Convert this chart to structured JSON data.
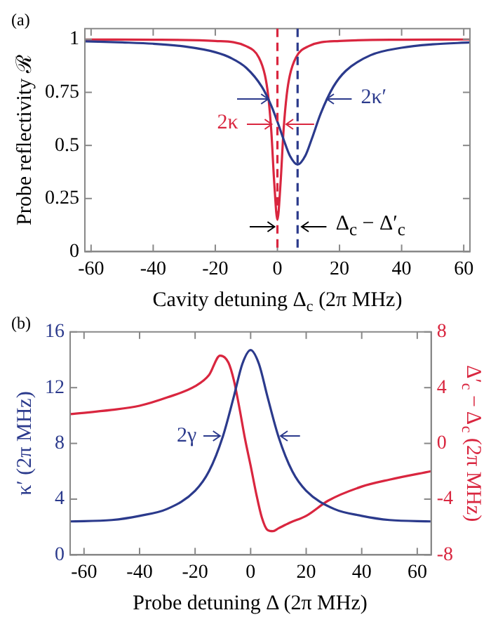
{
  "chart_data": [
    {
      "type": "line",
      "xlabel": "Cavity detuning Δ$_{c}$ (2π MHz)",
      "ylabel": "Probe reflectivity ℛ",
      "series": [
        {
          "color": "#2b3a8c",
          "x": [
            -62,
            -50,
            -40,
            -30,
            -20,
            -15,
            -10,
            -5,
            -2,
            0,
            2,
            4,
            6.5,
            9,
            11,
            14,
            18,
            22,
            30,
            40,
            50,
            62
          ],
          "values": [
            0.99,
            0.985,
            0.979,
            0.966,
            0.939,
            0.912,
            0.865,
            0.776,
            0.688,
            0.612,
            0.528,
            0.452,
            0.41,
            0.452,
            0.528,
            0.652,
            0.776,
            0.851,
            0.925,
            0.96,
            0.976,
            0.985
          ]
        },
        {
          "color": "#d9263f",
          "x": [
            -62,
            -40,
            -20,
            -10,
            -6,
            -4,
            -3,
            -2,
            -1,
            0,
            1,
            2,
            3,
            4,
            6,
            10,
            20,
            40,
            62
          ],
          "values": [
            0.999,
            0.998,
            0.992,
            0.967,
            0.915,
            0.83,
            0.738,
            0.575,
            0.32,
            0.15,
            0.32,
            0.575,
            0.738,
            0.83,
            0.915,
            0.967,
            0.992,
            0.998,
            0.999
          ]
        }
      ],
      "xlim": [
        -62,
        62
      ],
      "xticks": [
        -60,
        -40,
        -20,
        0,
        20,
        40,
        60
      ],
      "ylim": [
        0,
        1.05
      ],
      "yticks": [
        0,
        0.25,
        0.5,
        0.75,
        1
      ],
      "ref_lines": [
        {
          "axis": "x",
          "value": 0,
          "color": "#d9263f",
          "line_style": "dashed"
        },
        {
          "axis": "x",
          "value": 6.5,
          "color": "#2b3a8c",
          "line_style": "dashed"
        }
      ],
      "annotations": [
        "(a)",
        "2κ′",
        "2κ",
        "Δ$_{c}$ − Δ′$_{c}$"
      ]
    },
    {
      "type": "line",
      "xlabel": "Probe detuning Δ (2π MHz)",
      "ylabel": "κ′ (2π MHz)",
      "y2label": "Δ′$_{c}$ − Δ$_{c}$ (2π MHz)",
      "series": [
        {
          "color": "#2b3a8c",
          "x": [
            -65,
            -50,
            -40,
            -30,
            -20,
            -15,
            -10,
            -6,
            -3,
            0,
            3,
            6,
            10,
            15,
            20,
            30,
            40,
            50,
            65
          ],
          "values": [
            2.4,
            2.5,
            2.8,
            3.3,
            4.6,
            6,
            8.5,
            11.4,
            13.7,
            14.7,
            13.7,
            11.4,
            8.5,
            6,
            4.6,
            3.3,
            2.8,
            2.5,
            2.4
          ]
        },
        {
          "color": "#d9263f",
          "axis": "y2",
          "x": [
            -65,
            -50,
            -40,
            -30,
            -20,
            -15,
            -11,
            -8,
            -6,
            -4,
            -2,
            0,
            2,
            4,
            6,
            8,
            10,
            14,
            20,
            28,
            40,
            50,
            65
          ],
          "values": [
            2.1,
            2.4,
            2.7,
            3.3,
            4.1,
            4.9,
            6.3,
            5.8,
            4.5,
            2.5,
            0.3,
            -1.6,
            -3.6,
            -5.3,
            -6.2,
            -6.3,
            -6.1,
            -5.7,
            -5.2,
            -4.1,
            -3.1,
            -2.6,
            -2
          ]
        }
      ],
      "xlim": [
        -65,
        65
      ],
      "xticks": [
        -60,
        -40,
        -20,
        0,
        20,
        40,
        60
      ],
      "ylim": [
        0,
        16
      ],
      "yticks": [
        0,
        4,
        8,
        12,
        16
      ],
      "y2lim": [
        -8,
        8
      ],
      "y2ticks": [
        -8,
        -4,
        0,
        4,
        8
      ],
      "annotations": [
        "(b)",
        "2γ"
      ]
    }
  ]
}
